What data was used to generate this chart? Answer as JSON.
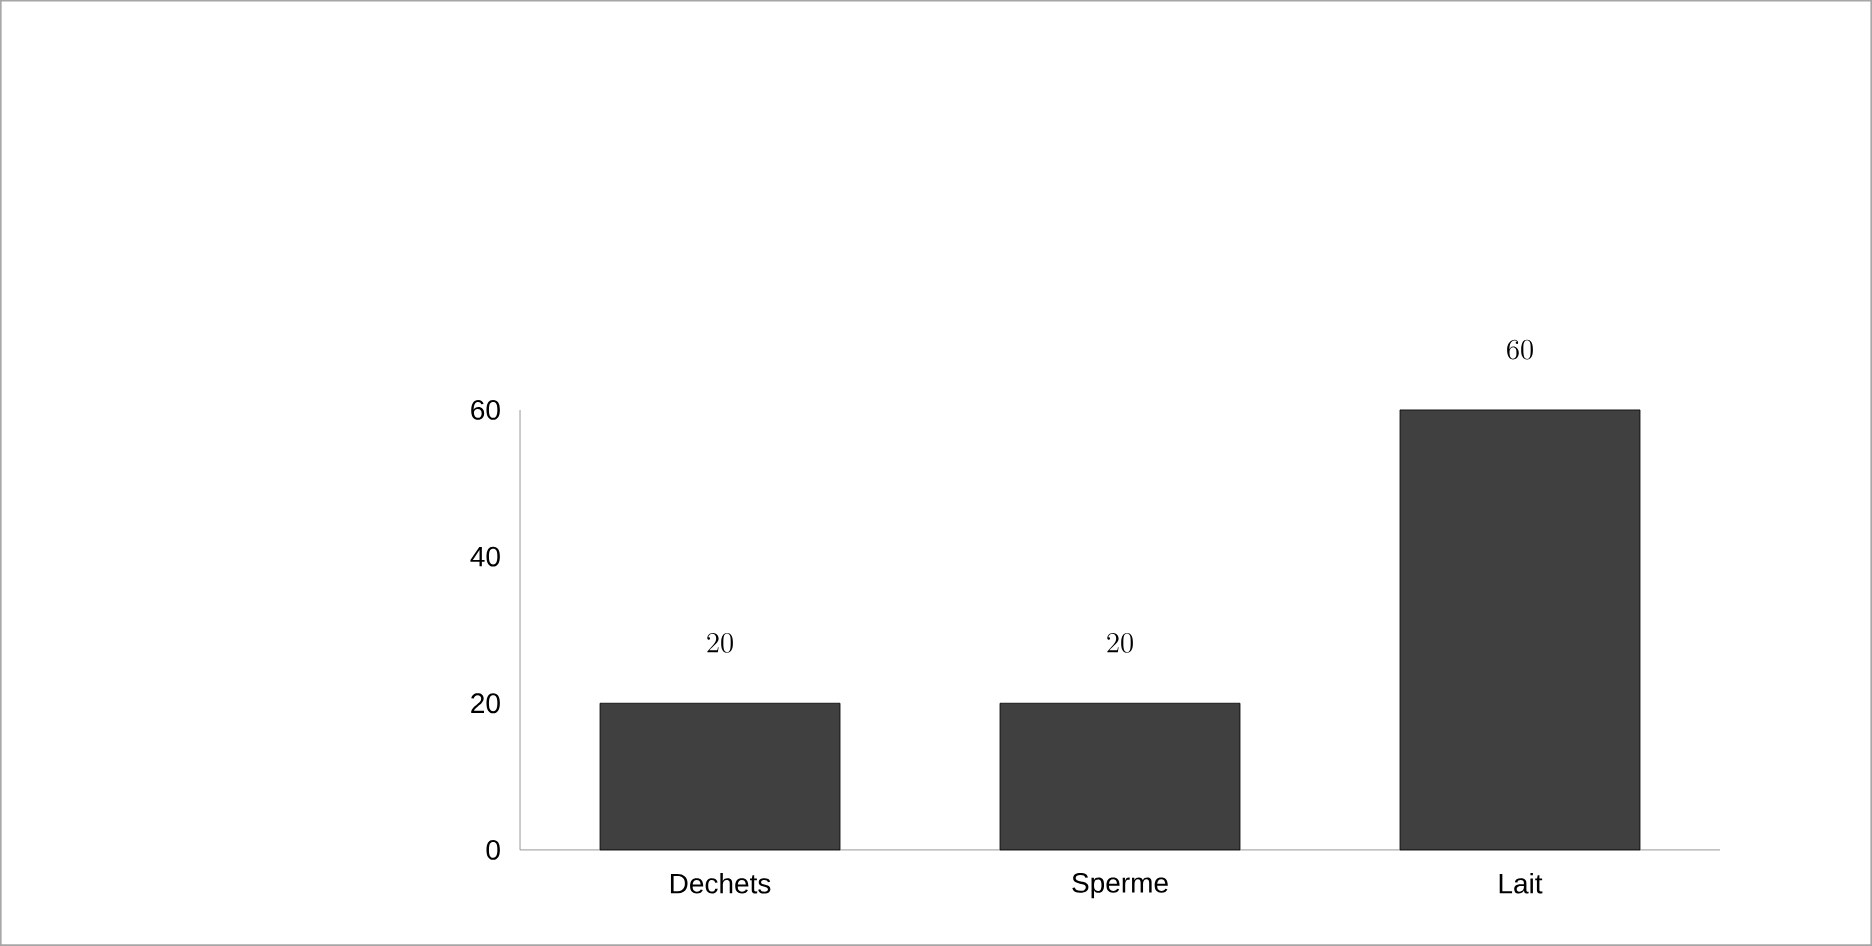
{
  "chart_data": {
    "type": "bar",
    "categories": [
      "Dechets",
      "Sperme",
      "Lait"
    ],
    "values": [
      20,
      20,
      60
    ],
    "color": "#404040",
    "ylim": [
      0,
      60
    ],
    "yticks": [
      0,
      20,
      40,
      60
    ],
    "grid": false,
    "data_labels": true
  }
}
